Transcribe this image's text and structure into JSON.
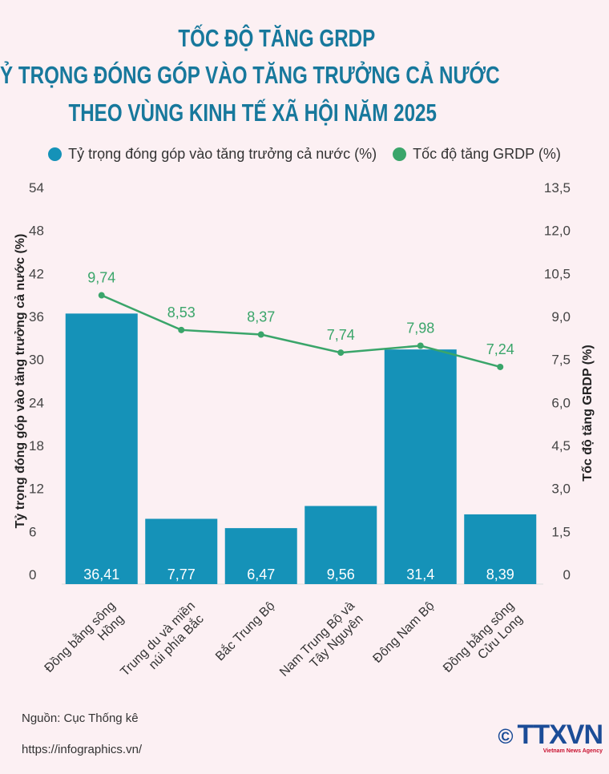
{
  "title_lines": [
    "TỐC ĐỘ TĂNG GRDP",
    "VÀ TỶ TRỌNG ĐÓNG GÓP VÀO TĂNG TRƯỞNG CẢ NƯỚC",
    "THEO VÙNG KINH TẾ XÃ HỘI NĂM 2025"
  ],
  "source": "Nguồn: Cục Thống kê",
  "url": "https://infographics.vn/",
  "logo": {
    "text": "TTXVN",
    "subtitle": "Vietnam News Agency",
    "copyright": "©"
  },
  "colors": {
    "bar": "#1592b8",
    "line": "#3aa56a",
    "title": "#17789c",
    "background": "#fcf0f3"
  },
  "chart_data": {
    "type": "bar+line",
    "categories": [
      [
        "Đồng bằng sông",
        "Hồng"
      ],
      [
        "Trung du và miền",
        "núi phía Bắc"
      ],
      [
        "Bắc Trung Bộ"
      ],
      [
        "Nam Trung Bộ và",
        "Tây Nguyên"
      ],
      [
        "Đông Nam Bộ"
      ],
      [
        "Đồng bằng sông",
        "Cửu Long"
      ]
    ],
    "series": [
      {
        "name": "Tỷ trọng đóng góp vào tăng trưởng cả nước (%)",
        "type": "bar",
        "axis": "left",
        "values": [
          36.41,
          7.77,
          6.47,
          9.56,
          31.4,
          8.39
        ],
        "labels": [
          "36,41",
          "7,77",
          "6,47",
          "9,56",
          "31,4",
          "8,39"
        ]
      },
      {
        "name": "Tốc độ tăng GRDP (%)",
        "type": "line",
        "axis": "right",
        "values": [
          9.74,
          8.53,
          8.37,
          7.74,
          7.98,
          7.24
        ],
        "labels": [
          "9,74",
          "8,53",
          "8,37",
          "7,74",
          "7,98",
          "7,24"
        ]
      }
    ],
    "ylabel": "Tỷ trọng đóng góp vào tăng trưởng cả nước (%)",
    "y2label": "Tốc độ tăng GRDP (%)",
    "ylim": [
      0,
      54
    ],
    "y2lim": [
      0,
      13.5
    ],
    "yticks": [
      "0",
      "6",
      "12",
      "18",
      "24",
      "30",
      "36",
      "42",
      "48",
      "54"
    ],
    "y2ticks": [
      "0",
      "1,5",
      "3,0",
      "4,5",
      "6,0",
      "7,5",
      "9,0",
      "10,5",
      "12,0",
      "13,5"
    ],
    "legend": "top-center",
    "grid": false
  }
}
